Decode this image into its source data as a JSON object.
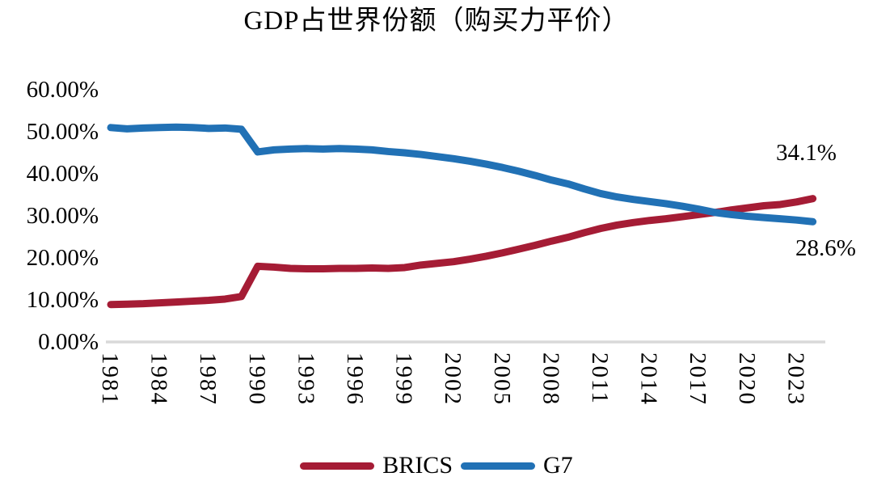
{
  "title": "GDP占世界份额（购买力平价）",
  "colors": {
    "brics": "#A51C35",
    "g7": "#2171B5",
    "axis": "#D9D9D9",
    "text": "#000000"
  },
  "legend": {
    "entries": [
      "BRICS",
      "G7"
    ]
  },
  "annotations": {
    "brics_end": "34.1%",
    "g7_end": "28.6%"
  },
  "chart_data": {
    "type": "line",
    "title": "GDP占世界份额（购买力平价）",
    "x": [
      1981,
      1982,
      1983,
      1984,
      1985,
      1986,
      1987,
      1988,
      1989,
      1990,
      1991,
      1992,
      1993,
      1994,
      1995,
      1996,
      1997,
      1998,
      1999,
      2000,
      2001,
      2002,
      2003,
      2004,
      2005,
      2006,
      2007,
      2008,
      2009,
      2010,
      2011,
      2012,
      2013,
      2014,
      2015,
      2016,
      2017,
      2018,
      2019,
      2020,
      2021,
      2022,
      2023,
      2024
    ],
    "x_tick_labels": [
      "1981",
      "1984",
      "1987",
      "1990",
      "1993",
      "1996",
      "1999",
      "2002",
      "2005",
      "2008",
      "2011",
      "2014",
      "2017",
      "2020",
      "2023"
    ],
    "y_tick_labels": [
      "0.00%",
      "10.00%",
      "20.00%",
      "30.00%",
      "40.00%",
      "50.00%",
      "60.00%"
    ],
    "ylim": [
      0,
      60
    ],
    "grid": false,
    "legend_position": "bottom",
    "series": [
      {
        "name": "BRICS",
        "color": "#A51C35",
        "values": [
          8.9,
          9.0,
          9.1,
          9.3,
          9.5,
          9.7,
          9.9,
          10.2,
          10.8,
          18.0,
          17.8,
          17.5,
          17.4,
          17.4,
          17.5,
          17.5,
          17.6,
          17.5,
          17.7,
          18.3,
          18.7,
          19.1,
          19.7,
          20.4,
          21.2,
          22.1,
          23.0,
          24.0,
          24.9,
          26.0,
          27.0,
          27.8,
          28.4,
          28.9,
          29.3,
          29.8,
          30.3,
          30.8,
          31.4,
          31.9,
          32.4,
          32.7,
          33.3,
          34.1
        ]
      },
      {
        "name": "G7",
        "color": "#2171B5",
        "values": [
          51.0,
          50.7,
          50.9,
          51.0,
          51.1,
          51.0,
          50.8,
          50.9,
          50.6,
          45.2,
          45.7,
          45.9,
          46.0,
          45.9,
          46.0,
          45.9,
          45.7,
          45.3,
          45.0,
          44.6,
          44.1,
          43.6,
          43.0,
          42.3,
          41.5,
          40.6,
          39.6,
          38.5,
          37.6,
          36.4,
          35.3,
          34.5,
          33.9,
          33.4,
          32.9,
          32.3,
          31.6,
          30.8,
          30.3,
          29.9,
          29.6,
          29.3,
          29.0,
          28.6
        ]
      }
    ],
    "end_labels": {
      "BRICS": "34.1%",
      "G7": "28.6%"
    }
  }
}
